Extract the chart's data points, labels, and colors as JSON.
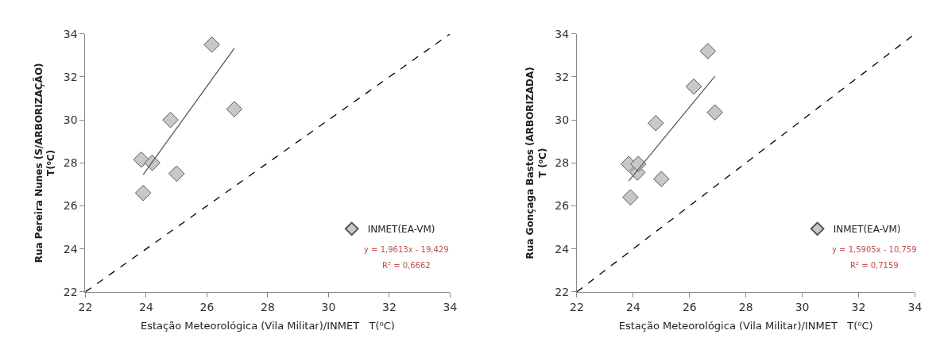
{
  "chart_data": [
    {
      "type": "scatter",
      "xlabel": "Estação Meteorológica (Vila Militar)/INMET   T(⁰C)",
      "ylabel": "Rua Pereira Nunes (S/ARBORIZAÇÃO)\nT(⁰C)",
      "xlim": [
        22,
        34
      ],
      "ylim": [
        22,
        34
      ],
      "xticks": [
        22,
        24,
        26,
        28,
        30,
        32,
        34
      ],
      "yticks": [
        22,
        24,
        26,
        28,
        30,
        32,
        34
      ],
      "legend": "bottom right",
      "annotations": [
        "y = 1,9613x - 19,429",
        "R² = 0,6662"
      ],
      "series": [
        {
          "name": "INMET(EA-VM)",
          "marker": "diamond",
          "color": "#c8c8c8",
          "x": [
            23.84,
            23.9,
            24.2,
            24.8,
            25.0,
            26.16,
            26.9
          ],
          "values": [
            28.15,
            26.6,
            28.0,
            30.0,
            27.5,
            33.5,
            30.5
          ]
        },
        {
          "type": "line",
          "line_style": "solid",
          "color": "#595959",
          "x": [
            23.9,
            26.9
          ],
          "values": [
            27.45,
            33.33
          ]
        },
        {
          "type": "line",
          "line_style": "dashed",
          "color": "#000000",
          "x": [
            22,
            34
          ],
          "values": [
            22,
            34
          ]
        }
      ]
    },
    {
      "type": "scatter",
      "xlabel": "Estação Meteorológica (Vila Militar)/INMET   T(⁰C)",
      "ylabel": "Rua Gonçaga Bastos (ARBORIZADA)\nT (⁰C)",
      "xlim": [
        22,
        34
      ],
      "ylim": [
        22,
        34
      ],
      "xticks": [
        22,
        24,
        26,
        28,
        30,
        32,
        34
      ],
      "yticks": [
        22,
        24,
        26,
        28,
        30,
        32,
        34
      ],
      "legend": "bottom right",
      "annotations": [
        "y = 1,5905x - 10,759",
        "R² = 0,7159"
      ],
      "series": [
        {
          "name": "INMET(EA-VM)",
          "marker": "diamond",
          "color": "#c8c8c8",
          "x": [
            23.84,
            23.9,
            24.15,
            24.18,
            24.8,
            25.0,
            26.15,
            26.65,
            26.9
          ],
          "values": [
            27.95,
            26.4,
            27.55,
            27.95,
            29.85,
            27.25,
            31.55,
            33.2,
            30.35
          ]
        },
        {
          "type": "line",
          "line_style": "solid",
          "color": "#595959",
          "x": [
            23.84,
            26.9
          ],
          "values": [
            27.16,
            32.03
          ]
        },
        {
          "type": "line",
          "line_style": "dashed",
          "color": "#000000",
          "x": [
            22,
            34
          ],
          "values": [
            22,
            34
          ]
        }
      ]
    }
  ]
}
